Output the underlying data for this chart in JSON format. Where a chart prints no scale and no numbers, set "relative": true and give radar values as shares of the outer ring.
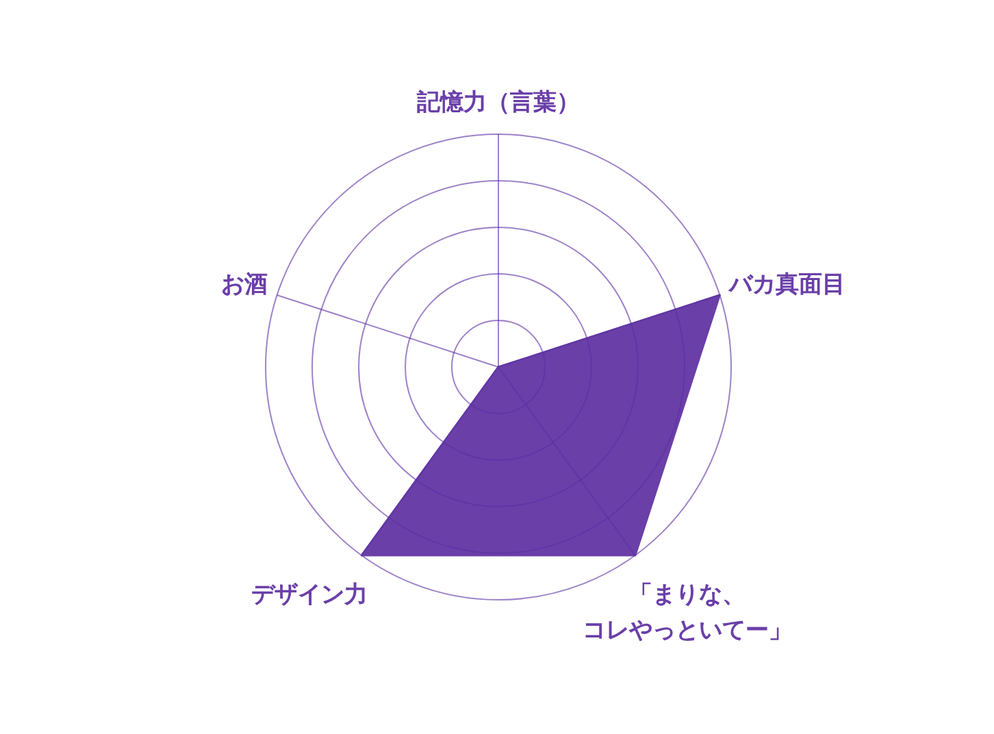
{
  "chart_data": {
    "type": "radar",
    "relative": true,
    "grid": true,
    "categories": [
      "記憶力（言葉）",
      "バカ真面目",
      "「まりな、コレやっといてー」",
      "デザイン力",
      "お酒"
    ],
    "series": [
      {
        "color": "#6a3fa8",
        "values": [
          0,
          1,
          1,
          1,
          0
        ]
      }
    ]
  }
}
